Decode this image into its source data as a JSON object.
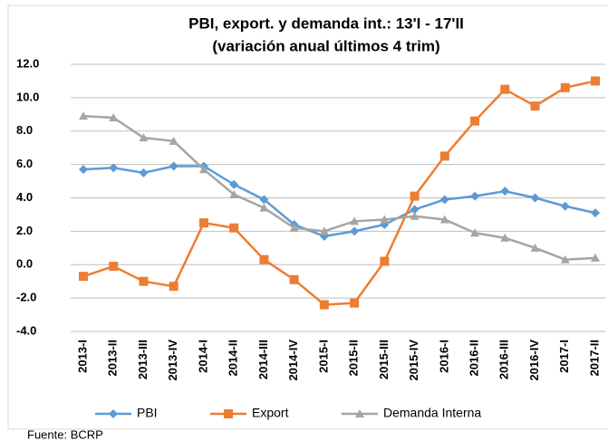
{
  "chart_data": {
    "type": "line",
    "title": "PBI, export. y demanda int.: 13'I - 17'II",
    "subtitle": "(variación anual últimos 4 trim)",
    "source": "Fuente: BCRP",
    "categories": [
      "2013-I",
      "2013-II",
      "2013-III",
      "2013-IV",
      "2014-I",
      "2014-II",
      "2014-III",
      "2014-IV",
      "2015-I",
      "2015-II",
      "2015-III",
      "2015-IV",
      "2016-I",
      "2016-II",
      "2016-III",
      "2016-IV",
      "2017-I",
      "2017-II"
    ],
    "series": [
      {
        "name": "PBI",
        "color": "#5b9bd5",
        "marker": "diamond",
        "values": [
          5.7,
          5.8,
          5.5,
          5.9,
          5.9,
          4.8,
          3.9,
          2.4,
          1.7,
          2.0,
          2.4,
          3.3,
          3.9,
          4.1,
          4.4,
          4.0,
          3.5,
          3.1
        ]
      },
      {
        "name": "Export",
        "color": "#ed7d31",
        "marker": "square",
        "values": [
          -0.7,
          -0.1,
          -1.0,
          -1.3,
          2.5,
          2.2,
          0.3,
          -0.9,
          -2.4,
          -2.3,
          0.2,
          4.1,
          6.5,
          8.6,
          10.5,
          9.5,
          10.6,
          11.0
        ]
      },
      {
        "name": "Demanda Interna",
        "color": "#a5a5a5",
        "marker": "triangle",
        "values": [
          8.9,
          8.8,
          7.6,
          7.4,
          5.7,
          4.2,
          3.4,
          2.2,
          2.0,
          2.6,
          2.7,
          2.9,
          2.7,
          1.9,
          1.6,
          1.0,
          0.3,
          0.4
        ]
      }
    ],
    "ylim": [
      -4,
      12
    ],
    "yticks": [
      {
        "value": -4,
        "label": "-4.0"
      },
      {
        "value": -2,
        "label": "-2.0"
      },
      {
        "value": 0,
        "label": "0.0"
      },
      {
        "value": 2,
        "label": "2.0"
      },
      {
        "value": 4,
        "label": "4.0"
      },
      {
        "value": 6,
        "label": "6.0"
      },
      {
        "value": 8,
        "label": "8.0"
      },
      {
        "value": 10,
        "label": "10.0"
      },
      {
        "value": 12,
        "label": "12.0"
      }
    ],
    "grid": true,
    "legend": "bottom"
  }
}
